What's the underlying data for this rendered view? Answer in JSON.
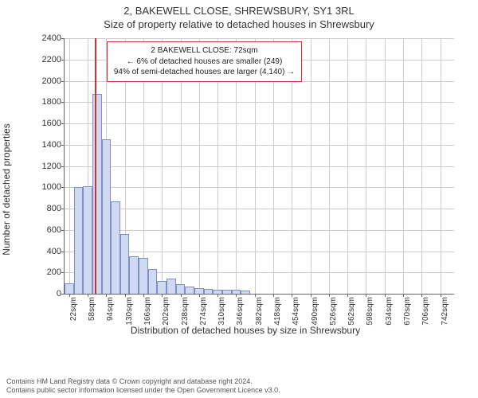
{
  "title_line1": "2, BAKEWELL CLOSE, SHREWSBURY, SY1 3RL",
  "title_line2": "Size of property relative to detached houses in Shrewsbury",
  "chart": {
    "type": "histogram",
    "ylabel": "Number of detached properties",
    "xlabel": "Distribution of detached houses by size in Shrewsbury",
    "ylim": [
      0,
      2400
    ],
    "ytick_step": 200,
    "xtick_start": 22,
    "xtick_step": 36,
    "xtick_count": 21,
    "xtick_unit": "sqm",
    "bar_fill": "#cfd9f2",
    "bar_stroke": "#7f8fbf",
    "grid_color": "#cccccc",
    "axis_color": "#666666",
    "background_color": "#ffffff",
    "marker_color": "#cc3333",
    "marker_x_sqm": 72,
    "bin_width_sqm": 18,
    "x_tick_bin_span": 2,
    "bars": [
      100,
      1000,
      1010,
      1880,
      1450,
      870,
      560,
      350,
      340,
      230,
      120,
      140,
      90,
      70,
      55,
      45,
      40,
      35,
      35,
      30,
      0,
      0,
      0,
      0,
      0,
      0,
      0,
      0,
      0,
      0,
      0,
      0,
      0,
      0,
      0,
      0,
      0,
      0,
      0,
      0,
      0,
      0
    ],
    "annotation": {
      "line1": "2 BAKEWELL CLOSE: 72sqm",
      "line2": "← 6% of detached houses are smaller (249)",
      "line3": "94% of semi-detached houses are larger (4,140) →",
      "border_color": "#cc3333"
    }
  },
  "footer": {
    "line1": "Contains HM Land Registry data © Crown copyright and database right 2024.",
    "line2": "Contains public sector information licensed under the Open Government Licence v3.0."
  }
}
